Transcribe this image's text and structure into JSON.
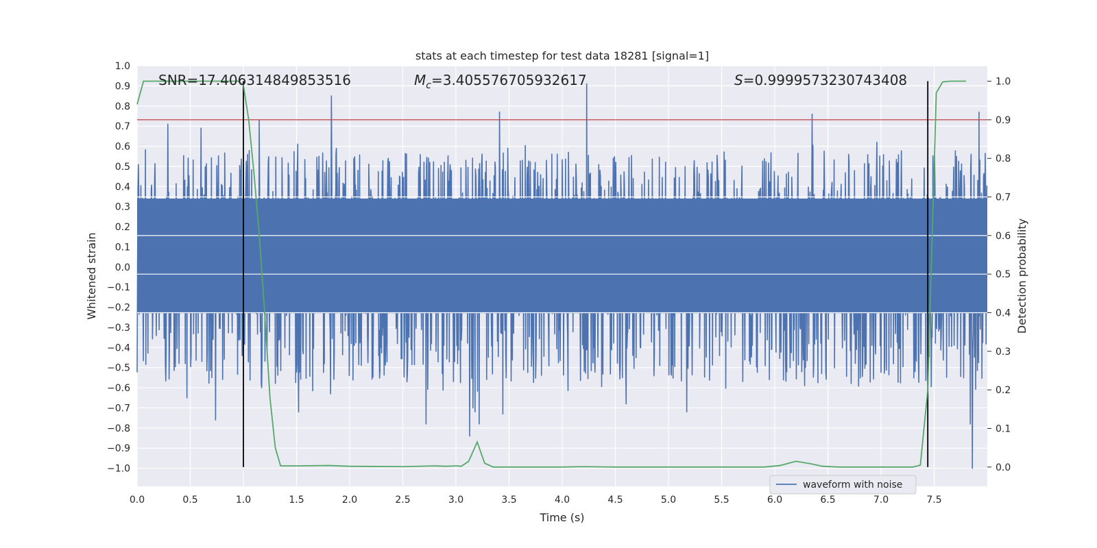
{
  "chart_data": {
    "type": "line",
    "title": "stats at each timestep for test data 18281 [signal=1]",
    "xlabel": "Time (s)",
    "ylabel": "Whitened strain",
    "ylabel_right": "Detection probability",
    "xlim": [
      0.0,
      8.0
    ],
    "ylim": [
      -1.09,
      1.0
    ],
    "ylim_right": [
      -0.05,
      1.04
    ],
    "x_ticks": [
      "0.0",
      "0.5",
      "1.0",
      "1.5",
      "2.0",
      "2.5",
      "3.0",
      "3.5",
      "4.0",
      "4.5",
      "5.0",
      "5.5",
      "6.0",
      "6.5",
      "7.0",
      "7.5"
    ],
    "x_tick_values": [
      0.0,
      0.5,
      1.0,
      1.5,
      2.0,
      2.5,
      3.0,
      3.5,
      4.0,
      4.5,
      5.0,
      5.5,
      6.0,
      6.5,
      7.0,
      7.5
    ],
    "y_ticks": [
      "1.0",
      "0.9",
      "0.8",
      "0.7",
      "0.6",
      "0.5",
      "0.4",
      "0.3",
      "0.2",
      "0.1",
      "0.0",
      "−0.1",
      "−0.2",
      "−0.3",
      "−0.4",
      "−0.5",
      "−0.6",
      "−0.7",
      "−0.8",
      "−0.9",
      "−1.0"
    ],
    "y_tick_values": [
      1.0,
      0.9,
      0.8,
      0.7,
      0.6,
      0.5,
      0.4,
      0.3,
      0.2,
      0.1,
      0.0,
      -0.1,
      -0.2,
      -0.3,
      -0.4,
      -0.5,
      -0.6,
      -0.7,
      -0.8,
      -0.9,
      -1.0
    ],
    "y_right_ticks": [
      "1.0",
      "0.9",
      "0.8",
      "0.7",
      "0.6",
      "0.5",
      "0.4",
      "0.3",
      "0.2",
      "0.1",
      "0.0"
    ],
    "y_right_tick_values": [
      1.0,
      0.9,
      0.8,
      0.7,
      0.6,
      0.5,
      0.4,
      0.3,
      0.2,
      0.1,
      0.0
    ],
    "annotations": {
      "snr": "SNR=17.406314849853516",
      "mc_symbol": "M",
      "mc_sub": "c",
      "mc_value": "=3.405576705932617",
      "s_symbol": "S",
      "s_value": "=0.9999573230743408"
    },
    "legend": {
      "label": "waveform with noise",
      "position": "lower-right"
    },
    "threshold": {
      "value": 0.9,
      "axis": "right",
      "color": "#c44e52"
    },
    "vertical_lines": [
      1.0,
      7.44
    ],
    "waveform": {
      "color": "#4c72b0",
      "sample_rate": 256,
      "duration": 8.0,
      "band": [
        -0.23,
        0.34
      ],
      "peaks": [
        {
          "t": 0.29,
          "v": 0.71
        },
        {
          "t": 0.6,
          "v": 0.69
        },
        {
          "t": 0.47,
          "v": -0.65
        },
        {
          "t": 0.74,
          "v": -0.76
        },
        {
          "t": 1.15,
          "v": 0.73
        },
        {
          "t": 1.17,
          "v": -0.6
        },
        {
          "t": 1.52,
          "v": -0.72
        },
        {
          "t": 1.83,
          "v": 0.85
        },
        {
          "t": 1.82,
          "v": -0.63
        },
        {
          "t": 2.72,
          "v": -0.78
        },
        {
          "t": 3.13,
          "v": -0.84
        },
        {
          "t": 3.16,
          "v": -0.7
        },
        {
          "t": 3.22,
          "v": -0.78
        },
        {
          "t": 3.41,
          "v": 0.77
        },
        {
          "t": 3.44,
          "v": -0.73
        },
        {
          "t": 4.23,
          "v": 0.91
        },
        {
          "t": 4.6,
          "v": -0.68
        },
        {
          "t": 5.17,
          "v": -0.72
        },
        {
          "t": 6.35,
          "v": 0.76
        },
        {
          "t": 7.86,
          "v": -1.0
        },
        {
          "t": 7.84,
          "v": -0.78
        },
        {
          "t": 7.92,
          "v": 0.77
        },
        {
          "t": 6.96,
          "v": 0.62
        },
        {
          "t": 3.18,
          "v": -0.72
        }
      ]
    },
    "probability": {
      "color": "#55a868",
      "t": [
        0.0,
        0.06,
        0.5,
        0.95,
        1.0,
        1.05,
        1.1,
        1.15,
        1.2,
        1.25,
        1.3,
        1.35,
        1.5,
        1.8,
        2.0,
        2.5,
        2.8,
        2.9,
        3.0,
        3.05,
        3.12,
        3.2,
        3.27,
        3.35,
        3.5,
        4.0,
        4.2,
        4.5,
        5.0,
        5.5,
        5.9,
        6.05,
        6.2,
        6.35,
        6.45,
        6.6,
        7.0,
        7.3,
        7.37,
        7.44,
        7.52,
        7.58,
        7.65,
        7.8
      ],
      "p": [
        0.94,
        1.0,
        1.0,
        1.0,
        0.99,
        0.9,
        0.76,
        0.6,
        0.4,
        0.18,
        0.05,
        0.003,
        0.003,
        0.004,
        0.002,
        0.001,
        0.003,
        0.002,
        0.003,
        0.002,
        0.015,
        0.065,
        0.01,
        0.0,
        0.0,
        0.0,
        0.001,
        0.0,
        0.0,
        0.0,
        0.0,
        0.004,
        0.015,
        0.008,
        0.002,
        0.0,
        0.0,
        0.0,
        0.005,
        0.2,
        0.97,
        0.998,
        1.0,
        1.0
      ]
    }
  }
}
